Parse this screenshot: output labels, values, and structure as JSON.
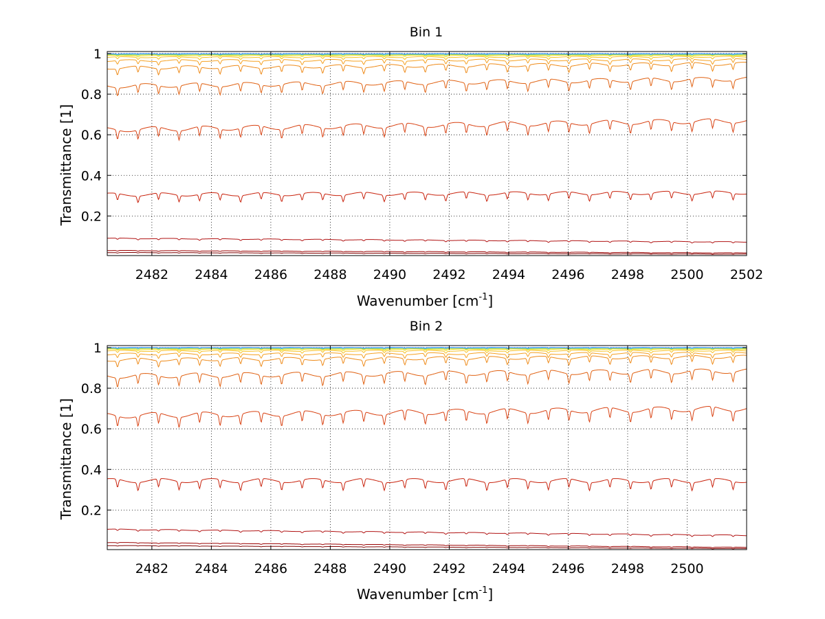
{
  "chart_data": [
    {
      "type": "line",
      "title": "Bin 1",
      "xlabel": "Wavenumber [cm",
      "xlabel_sup": "-1",
      "xlabel_suffix": "]",
      "ylabel": "Transmittance [1]",
      "xlim": [
        2480.5,
        2502
      ],
      "ylim": [
        0.005,
        1.01
      ],
      "xticks": [
        2482,
        2484,
        2486,
        2488,
        2490,
        2492,
        2494,
        2496,
        2498,
        2500,
        2502
      ],
      "xtick_labels": [
        "2482",
        "2484",
        "2486",
        "2488",
        "2490",
        "2492",
        "2494",
        "2496",
        "2498",
        "2500",
        "2502"
      ],
      "yticks": [
        0.2,
        0.4,
        0.6,
        0.8,
        1
      ],
      "ytick_labels": [
        "0.2",
        "0.4",
        "0.6",
        "0.8",
        "1"
      ],
      "grid": true,
      "line_period_cm1": 0.69,
      "series": [
        {
          "color": "#800000",
          "start": 0.02,
          "end": 0.012,
          "depth": 0.002
        },
        {
          "color": "#9a0000",
          "start": 0.03,
          "end": 0.018,
          "depth": 0.003
        },
        {
          "color": "#b01010",
          "start": 0.09,
          "end": 0.072,
          "depth": 0.006
        },
        {
          "color": "#c8200a",
          "start": 0.305,
          "end": 0.315,
          "depth": 0.032
        },
        {
          "color": "#d84010",
          "start": 0.625,
          "end": 0.67,
          "depth": 0.045
        },
        {
          "color": "#e06010",
          "start": 0.84,
          "end": 0.875,
          "depth": 0.04
        },
        {
          "color": "#ee8a18",
          "start": 0.93,
          "end": 0.95,
          "depth": 0.03
        },
        {
          "color": "#f5a020",
          "start": 0.965,
          "end": 0.97,
          "depth": 0.018
        },
        {
          "color": "#f7c020",
          "start": 0.982,
          "end": 0.984,
          "depth": 0.01
        },
        {
          "color": "#f0e020",
          "start": 0.99,
          "end": 0.991,
          "depth": 0.006
        },
        {
          "color": "#c0e040",
          "start": 0.994,
          "end": 0.994,
          "depth": 0.004
        },
        {
          "color": "#60d0c0",
          "start": 0.997,
          "end": 0.997,
          "depth": 0.003
        },
        {
          "color": "#2080ff",
          "start": 0.999,
          "end": 0.999,
          "depth": 0.002
        }
      ]
    },
    {
      "type": "line",
      "title": "Bin 2",
      "xlabel": "Wavenumber [cm",
      "xlabel_sup": "-1",
      "xlabel_suffix": "]",
      "ylabel": "Transmittance [1]",
      "xlim": [
        2480.5,
        2502
      ],
      "ylim": [
        0.005,
        1.01
      ],
      "xticks": [
        2482,
        2484,
        2486,
        2488,
        2490,
        2492,
        2494,
        2496,
        2498,
        2500
      ],
      "xtick_labels": [
        "2482",
        "2484",
        "2486",
        "2488",
        "2490",
        "2492",
        "2494",
        "2496",
        "2498",
        "2500"
      ],
      "yticks": [
        0.2,
        0.4,
        0.6,
        0.8,
        1
      ],
      "ytick_labels": [
        "0.2",
        "0.4",
        "0.6",
        "0.8",
        "1"
      ],
      "grid": true,
      "line_period_cm1": 0.69,
      "series": [
        {
          "color": "#800000",
          "start": 0.025,
          "end": 0.01,
          "depth": 0.002
        },
        {
          "color": "#9a0000",
          "start": 0.04,
          "end": 0.016,
          "depth": 0.003
        },
        {
          "color": "#b01010",
          "start": 0.105,
          "end": 0.075,
          "depth": 0.007
        },
        {
          "color": "#c8200a",
          "start": 0.345,
          "end": 0.345,
          "depth": 0.04
        },
        {
          "color": "#d84010",
          "start": 0.665,
          "end": 0.7,
          "depth": 0.05
        },
        {
          "color": "#e06010",
          "start": 0.86,
          "end": 0.885,
          "depth": 0.045
        },
        {
          "color": "#ee8a18",
          "start": 0.94,
          "end": 0.955,
          "depth": 0.03
        },
        {
          "color": "#f5a020",
          "start": 0.968,
          "end": 0.972,
          "depth": 0.018
        },
        {
          "color": "#f7c020",
          "start": 0.984,
          "end": 0.985,
          "depth": 0.01
        },
        {
          "color": "#f0e020",
          "start": 0.991,
          "end": 0.992,
          "depth": 0.006
        },
        {
          "color": "#c0e040",
          "start": 0.995,
          "end": 0.995,
          "depth": 0.004
        },
        {
          "color": "#60d0c0",
          "start": 0.998,
          "end": 0.998,
          "depth": 0.003
        },
        {
          "color": "#2080ff",
          "start": 1.0,
          "end": 1.0,
          "depth": 0.002
        }
      ]
    }
  ]
}
